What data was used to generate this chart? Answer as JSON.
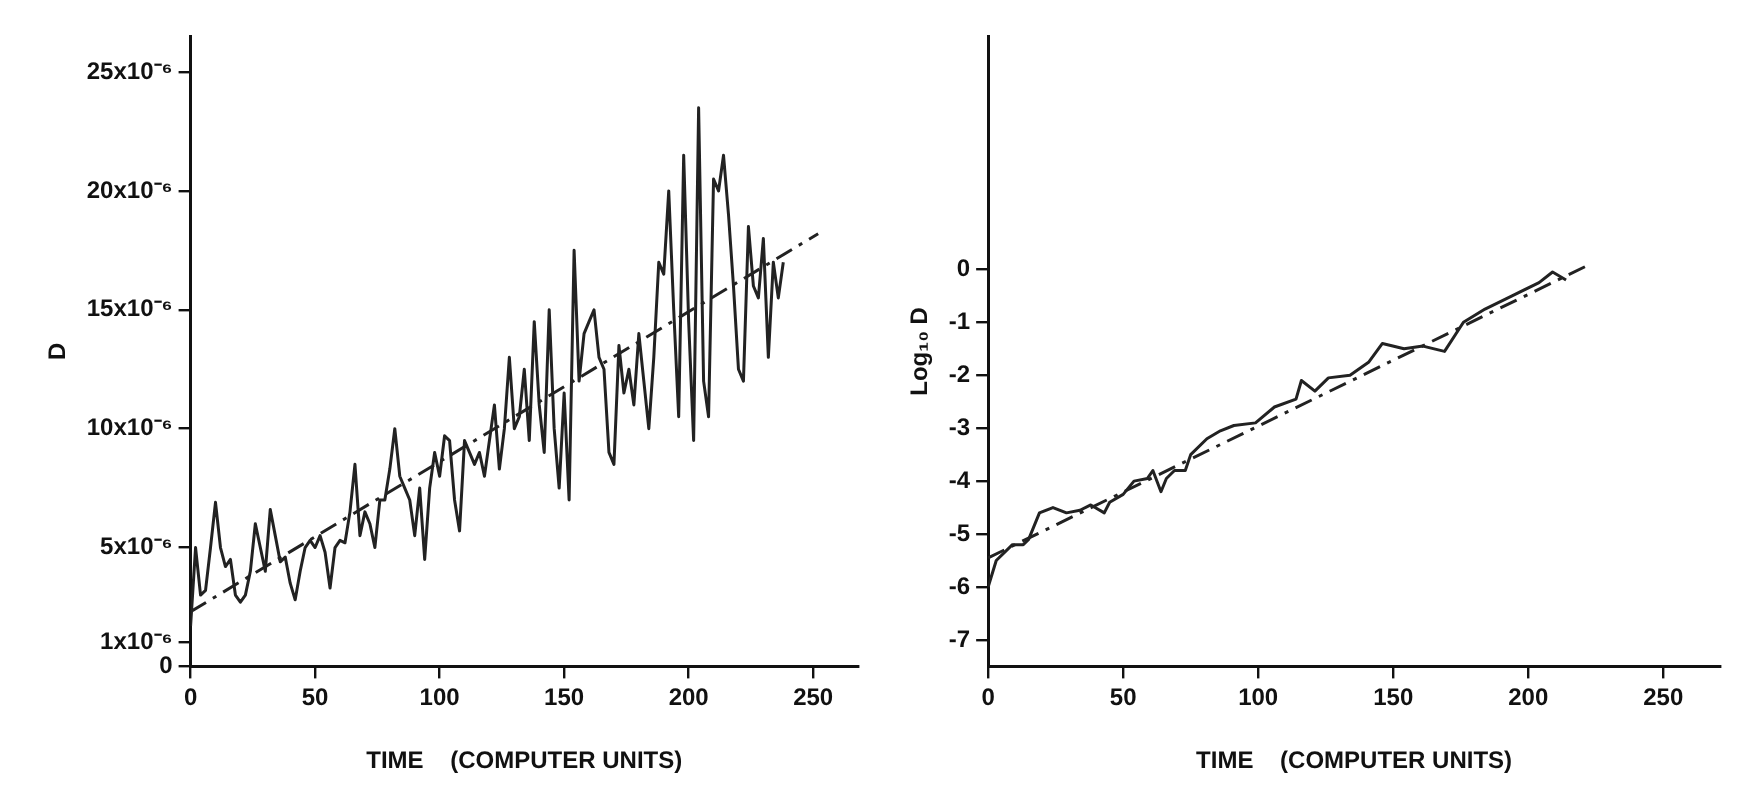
{
  "chart_data": [
    {
      "type": "line",
      "xlabel": "TIME    (COMPUTER UNITS)",
      "ylabel": "D",
      "xlim": [
        0,
        268
      ],
      "xticks": [
        0,
        50,
        100,
        150,
        200,
        250
      ],
      "ylim": [
        0,
        2.65e-05
      ],
      "yticks": [
        {
          "value": 0,
          "label": "0"
        },
        {
          "value": 1e-06,
          "label": "1x10⁻⁶"
        },
        {
          "value": 5e-06,
          "label": "5x10⁻⁶"
        },
        {
          "value": 1e-05,
          "label": "10x10⁻⁶"
        },
        {
          "value": 1.5e-05,
          "label": "15x10⁻⁶"
        },
        {
          "value": 2e-05,
          "label": "20x10⁻⁶"
        },
        {
          "value": 2.5e-05,
          "label": "25x10⁻⁶"
        }
      ],
      "grid": false,
      "legend": false,
      "marker": "none",
      "series": [
        {
          "color": "#222222",
          "line_style": "solid",
          "x": [
            0,
            2,
            4,
            6,
            8,
            10,
            12,
            14,
            16,
            18,
            20,
            22,
            24,
            26,
            28,
            30,
            32,
            34,
            36,
            38,
            40,
            42,
            44,
            46,
            48,
            50,
            52,
            54,
            56,
            58,
            60,
            62,
            64,
            66,
            68,
            70,
            72,
            74,
            76,
            78,
            80,
            82,
            84,
            86,
            88,
            90,
            92,
            94,
            96,
            98,
            100,
            102,
            104,
            106,
            108,
            110,
            112,
            114,
            116,
            118,
            120,
            122,
            124,
            126,
            128,
            130,
            132,
            134,
            136,
            138,
            140,
            142,
            144,
            146,
            148,
            150,
            152,
            154,
            156,
            158,
            160,
            162,
            164,
            166,
            168,
            170,
            172,
            174,
            176,
            178,
            180,
            182,
            184,
            186,
            188,
            190,
            192,
            194,
            196,
            198,
            200,
            202,
            204,
            206,
            208,
            210,
            212,
            214,
            216,
            218,
            220,
            222,
            224,
            226,
            228,
            230,
            232,
            234,
            236,
            238
          ],
          "values": [
            1.7e-06,
            5e-06,
            3e-06,
            3.2e-06,
            5e-06,
            6.9e-06,
            5e-06,
            4.2e-06,
            4.5e-06,
            3e-06,
            2.7e-06,
            3e-06,
            4e-06,
            6e-06,
            5e-06,
            4e-06,
            6.6e-06,
            5.5e-06,
            4.4e-06,
            4.6e-06,
            3.5e-06,
            2.8e-06,
            4e-06,
            5e-06,
            5.3e-06,
            5e-06,
            5.5e-06,
            4.8e-06,
            3.3e-06,
            5e-06,
            5.3e-06,
            5.2e-06,
            6.5e-06,
            8.5e-06,
            5.5e-06,
            6.5e-06,
            6e-06,
            5e-06,
            7e-06,
            7e-06,
            8.3e-06,
            1e-05,
            8e-06,
            7.5e-06,
            7e-06,
            5.5e-06,
            7.5e-06,
            4.5e-06,
            7.5e-06,
            9e-06,
            8e-06,
            9.7e-06,
            9.5e-06,
            7e-06,
            5.7e-06,
            9.5e-06,
            9e-06,
            8.5e-06,
            9e-06,
            8e-06,
            9.5e-06,
            1.1e-05,
            8.3e-06,
            1e-05,
            1.3e-05,
            1e-05,
            1.05e-05,
            1.25e-05,
            9.5e-06,
            1.45e-05,
            1.1e-05,
            9e-06,
            1.5e-05,
            1e-05,
            7.5e-06,
            1.15e-05,
            7e-06,
            1.75e-05,
            1.2e-05,
            1.4e-05,
            1.45e-05,
            1.5e-05,
            1.3e-05,
            1.25e-05,
            9e-06,
            8.5e-06,
            1.35e-05,
            1.15e-05,
            1.25e-05,
            1.1e-05,
            1.4e-05,
            1.2e-05,
            1e-05,
            1.3e-05,
            1.7e-05,
            1.65e-05,
            2e-05,
            1.5e-05,
            1.05e-05,
            2.15e-05,
            1.45e-05,
            9.5e-06,
            2.35e-05,
            1.2e-05,
            1.05e-05,
            2.05e-05,
            2e-05,
            2.15e-05,
            1.9e-05,
            1.6e-05,
            1.25e-05,
            1.2e-05,
            1.85e-05,
            1.6e-05,
            1.55e-05,
            1.8e-05,
            1.3e-05,
            1.7e-05,
            1.55e-05,
            1.7e-05
          ]
        },
        {
          "color": "#222222",
          "line_style": "dashed",
          "x": [
            0,
            252
          ],
          "values": [
            2.3e-06,
            1.82e-05
          ]
        }
      ]
    },
    {
      "type": "line",
      "xlabel": "TIME    (COMPUTER UNITS)",
      "ylabel": "Log₁₀ D",
      "xlim": [
        0,
        271
      ],
      "xticks": [
        0,
        50,
        100,
        150,
        200,
        250
      ],
      "ylim": [
        -7.5,
        4.4
      ],
      "yticks": [
        -7,
        -6,
        -5,
        -4,
        -3,
        -2,
        -1,
        0
      ],
      "grid": false,
      "legend": false,
      "marker": "none",
      "series": [
        {
          "color": "#222222",
          "line_style": "solid",
          "x": [
            0,
            3,
            9,
            13,
            15,
            19,
            24,
            29,
            34,
            38,
            43,
            45,
            50,
            54,
            59,
            61,
            64,
            66,
            69,
            73,
            75,
            81,
            86,
            91,
            99,
            106,
            114,
            116,
            121,
            126,
            134,
            141,
            146,
            154,
            161,
            169,
            176,
            184,
            194,
            204,
            209,
            214
          ],
          "values": [
            -6.0,
            -5.5,
            -5.2,
            -5.2,
            -5.1,
            -4.6,
            -4.5,
            -4.6,
            -4.55,
            -4.45,
            -4.6,
            -4.4,
            -4.25,
            -4.0,
            -3.95,
            -3.8,
            -4.2,
            -3.95,
            -3.8,
            -3.8,
            -3.5,
            -3.2,
            -3.05,
            -2.95,
            -2.9,
            -2.6,
            -2.45,
            -2.1,
            -2.3,
            -2.05,
            -2.0,
            -1.75,
            -1.4,
            -1.5,
            -1.45,
            -1.55,
            -1.0,
            -0.75,
            -0.5,
            -0.25,
            -0.05,
            -0.2
          ]
        },
        {
          "color": "#222222",
          "line_style": "dashed",
          "x": [
            0,
            221
          ],
          "values": [
            -5.45,
            0.05
          ]
        }
      ]
    }
  ]
}
